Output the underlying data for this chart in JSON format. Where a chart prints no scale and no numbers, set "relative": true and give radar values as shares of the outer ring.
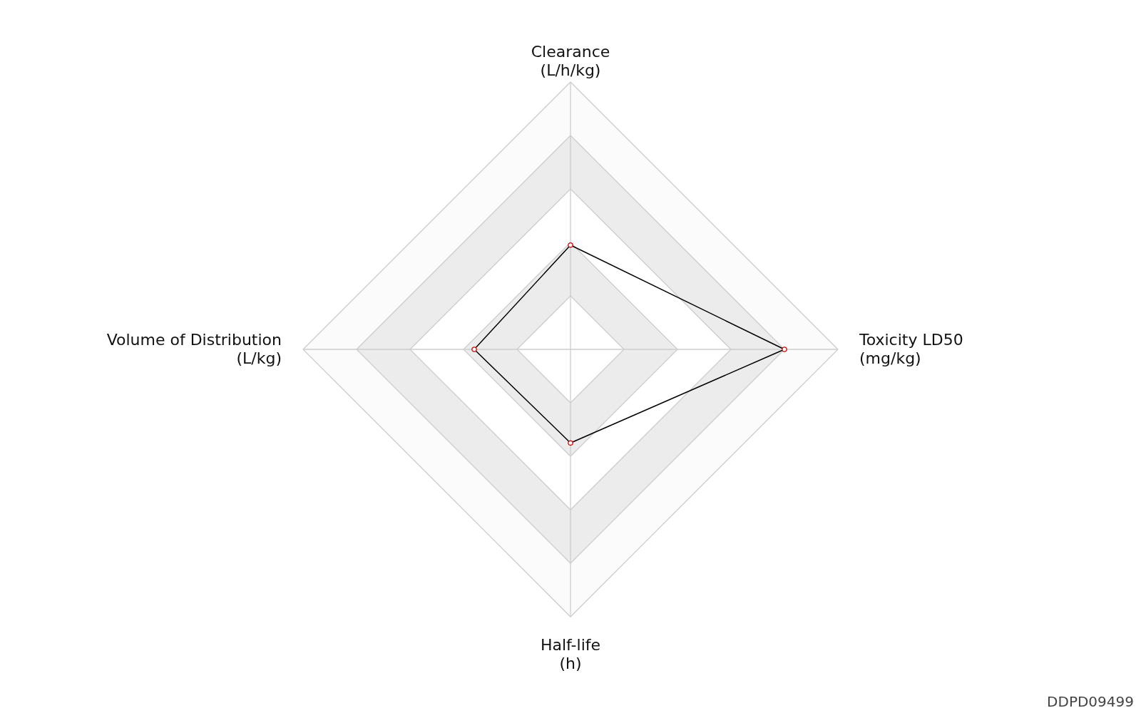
{
  "chart_data": {
    "type": "radar",
    "relative": true,
    "grid": true,
    "marker": "circle",
    "line_style": "solid",
    "categories": [
      "Clearance\n(L/h/kg)",
      "Toxicity LD50\n(mg/kg)",
      "Half-life\n(h)",
      "Volume of Distribution\n(L/kg)"
    ],
    "series": [
      {
        "color": "#000000",
        "values": [
          0.39,
          0.8,
          0.35,
          0.36
        ]
      }
    ],
    "annotations": [
      "DDPD09499"
    ]
  }
}
